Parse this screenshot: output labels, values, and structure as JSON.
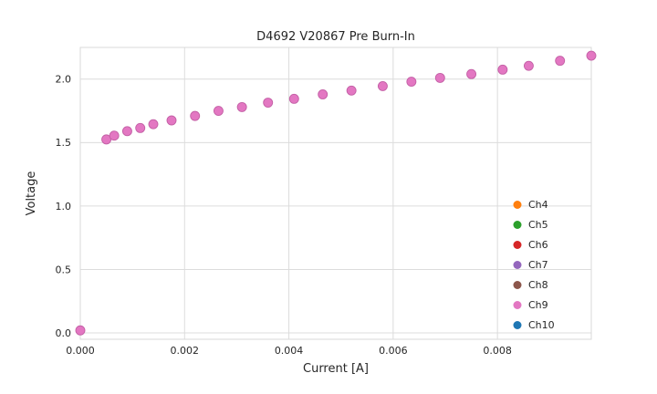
{
  "chart_data": {
    "type": "scatter",
    "title": "D4692 V20867 Pre Burn-In",
    "xlabel": "Current [A]",
    "ylabel": "Voltage",
    "xlim": [
      0,
      0.0098
    ],
    "ylim": [
      -0.05,
      2.25
    ],
    "xticks": [
      0,
      0.002,
      0.004,
      0.006,
      0.008
    ],
    "xtick_labels": [
      "0.000",
      "0.002",
      "0.004",
      "0.006",
      "0.008"
    ],
    "yticks": [
      0.0,
      0.5,
      1.0,
      1.5,
      2.0
    ],
    "ytick_labels": [
      "0.0",
      "0.5",
      "1.0",
      "1.5",
      "2.0"
    ],
    "grid": true,
    "legend_position": "lower right",
    "series": [
      {
        "name": "Ch4",
        "color": "#ff7f0e"
      },
      {
        "name": "Ch5",
        "color": "#2ca02c"
      },
      {
        "name": "Ch6",
        "color": "#d62728"
      },
      {
        "name": "Ch7",
        "color": "#9467bd"
      },
      {
        "name": "Ch8",
        "color": "#8c564b"
      },
      {
        "name": "Ch9",
        "color": "#e377c2"
      },
      {
        "name": "Ch10",
        "color": "#1f77b4"
      }
    ],
    "series_note": "All channels Ch4–Ch10 plot the same overlapping points; Ch9 (pink) is the topmost visible layer.",
    "x": [
      0.0,
      0.0005,
      0.00065,
      0.0009,
      0.00115,
      0.0014,
      0.00175,
      0.0022,
      0.00265,
      0.0031,
      0.0036,
      0.0041,
      0.00465,
      0.0052,
      0.0058,
      0.00635,
      0.0069,
      0.0075,
      0.0081,
      0.0086,
      0.0092,
      0.0098
    ],
    "y": [
      0.02,
      1.525,
      1.555,
      1.59,
      1.615,
      1.645,
      1.675,
      1.71,
      1.75,
      1.78,
      1.815,
      1.845,
      1.88,
      1.91,
      1.945,
      1.98,
      2.01,
      2.04,
      2.075,
      2.105,
      2.145,
      2.185
    ],
    "marker": {
      "top_fill": "#e377c2",
      "edge": "#c35fa5",
      "radius": 5
    },
    "style": {
      "grid_color": "#dcdcdc",
      "spine_color": "#d9d9d9",
      "background": "#ffffff"
    }
  }
}
